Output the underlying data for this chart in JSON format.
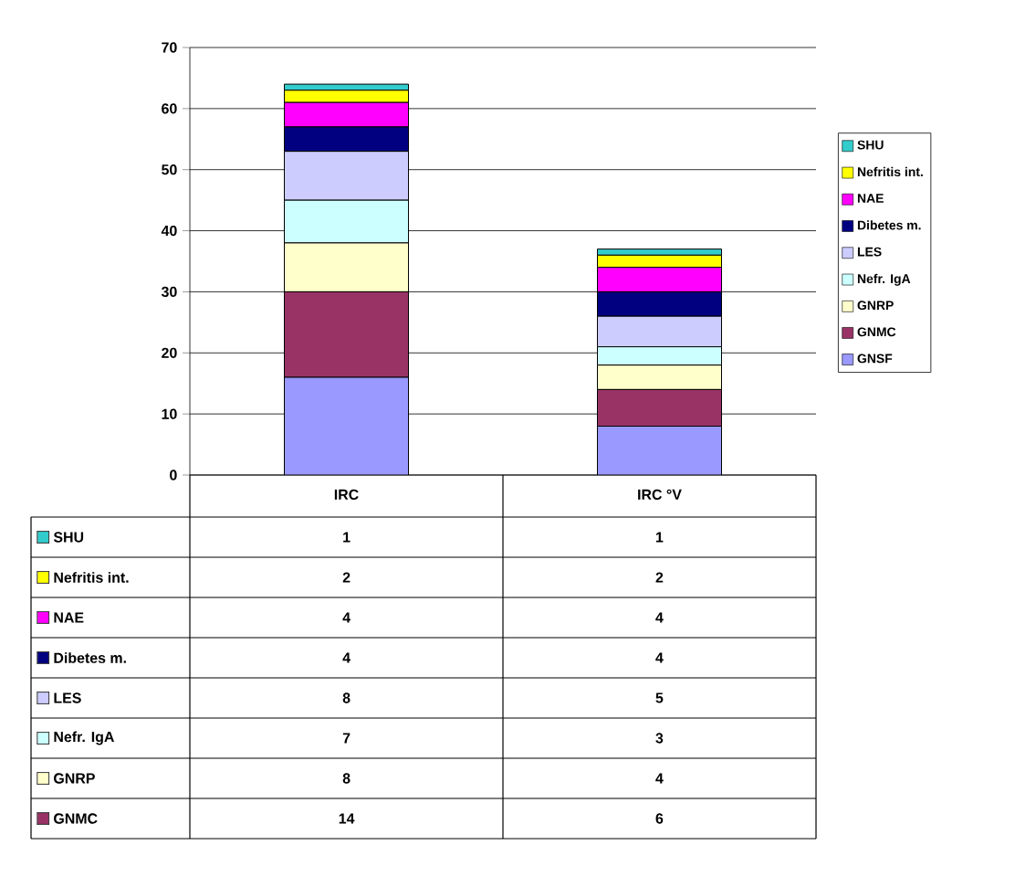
{
  "chart_data": {
    "type": "bar",
    "stacked": true,
    "categories": [
      "IRC",
      "IRC °V"
    ],
    "series": [
      {
        "name": "GNSF",
        "color": "#9999ff",
        "values": [
          16,
          8
        ],
        "value_labels": [
          null,
          null
        ]
      },
      {
        "name": "GNMC",
        "color": "#993366",
        "values": [
          14,
          6
        ],
        "value_labels": [
          "14",
          "6"
        ]
      },
      {
        "name": "GNRP",
        "color": "#ffffcc",
        "values": [
          8,
          4
        ],
        "value_labels": [
          "8",
          "4"
        ]
      },
      {
        "name": "Nefr. IgA",
        "color": "#ccffff",
        "values": [
          7,
          3
        ],
        "value_labels": [
          "7",
          "3"
        ]
      },
      {
        "name": "LES",
        "color": "#ccccff",
        "values": [
          8,
          5
        ],
        "value_labels": [
          "8",
          "5"
        ]
      },
      {
        "name": "Dibetes m.",
        "color": "#000080",
        "values": [
          4,
          4
        ],
        "value_labels": [
          "4",
          "4"
        ]
      },
      {
        "name": "NAE",
        "color": "#ff00ff",
        "values": [
          4,
          4
        ],
        "value_labels": [
          "4",
          "4"
        ]
      },
      {
        "name": "Nefritis int.",
        "color": "#ffff00",
        "values": [
          2,
          2
        ],
        "value_labels": [
          "2",
          "2"
        ]
      },
      {
        "name": "SHU",
        "color": "#33cccc",
        "values": [
          1,
          1
        ],
        "value_labels": [
          "1",
          "1"
        ]
      }
    ],
    "ylim": [
      0,
      70
    ],
    "yticks": [
      0,
      10,
      20,
      30,
      40,
      50,
      60,
      70
    ],
    "grid": "y",
    "legend": "right"
  }
}
